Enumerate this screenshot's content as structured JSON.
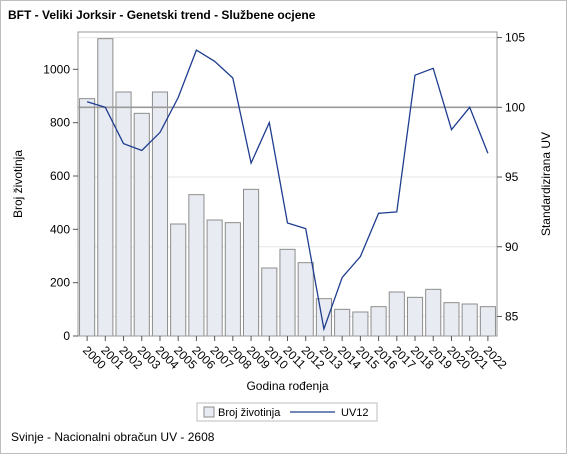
{
  "page": {
    "title": "BFT - Veliki Jorksir - Genetski trend - Službene ocjene",
    "footnote": "Svinje - Nacionalni obračun UV - 2608"
  },
  "colors": {
    "bar_fill": "#e8ecf2",
    "bar_stroke": "#8c8c8c",
    "line": "#1f3d8f",
    "reference_line": "#9a9a9a",
    "grid": "#e6e6e6",
    "plot_border": "#9a9a9a"
  },
  "chart_data": {
    "type": "bar",
    "x": [
      "2000",
      "2001",
      "2002",
      "2003",
      "2004",
      "2005",
      "2006",
      "2007",
      "2008",
      "2009",
      "2010",
      "2011",
      "2012",
      "2013",
      "2014",
      "2015",
      "2016",
      "2017",
      "2018",
      "2019",
      "2020",
      "2021",
      "2022"
    ],
    "series": [
      {
        "name": "Broj životinja",
        "type": "bar",
        "axis": "left",
        "values": [
          890,
          1115,
          915,
          835,
          915,
          420,
          530,
          435,
          425,
          550,
          255,
          325,
          275,
          140,
          100,
          90,
          110,
          165,
          145,
          175,
          125,
          120,
          110
        ]
      },
      {
        "name": "UV12",
        "type": "line",
        "axis": "right",
        "values": [
          100.4,
          100.0,
          97.4,
          96.9,
          98.2,
          100.7,
          104.1,
          103.3,
          102.1,
          96.0,
          98.9,
          91.7,
          91.3,
          84.1,
          87.8,
          89.3,
          92.4,
          92.5,
          102.3,
          102.8,
          98.4,
          100.0,
          96.7
        ]
      }
    ],
    "xlabel": "Godina rođenja",
    "ylabel": "Broj životinja",
    "y2label": "Standardizirana UV",
    "ylim": [
      0,
      1140
    ],
    "y2lim": [
      83.6,
      105.4
    ],
    "yticks": [
      0,
      200,
      400,
      600,
      800,
      1000
    ],
    "y2ticks": [
      85,
      90,
      95,
      100,
      105
    ],
    "reference_line_y2": 100,
    "grid": true,
    "legend_position": "bottom"
  }
}
